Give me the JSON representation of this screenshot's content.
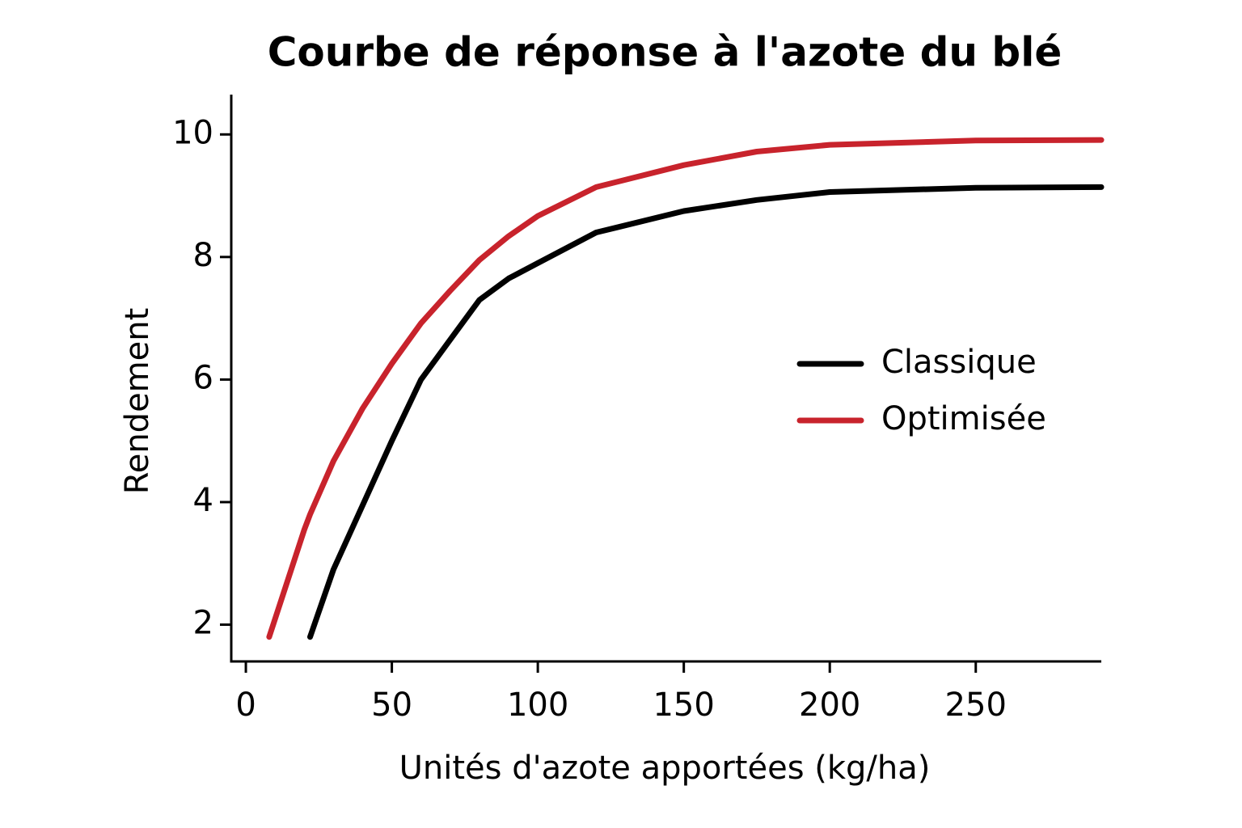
{
  "chart_data": {
    "type": "line",
    "title": "Courbe de réponse à l'azote du blé",
    "xlabel": "Unités d'azote apportées (kg/ha)",
    "ylabel": "Rendement",
    "x": [
      8,
      20,
      22,
      30,
      40,
      50,
      60,
      70,
      80,
      90,
      100,
      120,
      150,
      175,
      200,
      250,
      293
    ],
    "series": [
      {
        "name": "Classique",
        "color": "#000000",
        "values": [
          null,
          null,
          1.8,
          2.9,
          3.95,
          5.0,
          6.0,
          6.65,
          7.3,
          7.65,
          7.9,
          8.4,
          8.75,
          8.93,
          9.06,
          9.13,
          9.14
        ]
      },
      {
        "name": "Optimisée",
        "color": "#c8232c",
        "values": [
          1.8,
          3.55,
          3.8,
          4.67,
          5.53,
          6.26,
          6.92,
          7.45,
          7.95,
          8.34,
          8.67,
          9.14,
          9.5,
          9.72,
          9.83,
          9.9,
          9.91
        ]
      }
    ],
    "xlim": [
      -5,
      293
    ],
    "xticks": [
      0,
      50,
      100,
      150,
      200,
      250
    ],
    "ylim": [
      1.4,
      10.65
    ],
    "yticks": [
      2,
      4,
      6,
      8,
      10
    ],
    "grid": false,
    "legend": "right"
  }
}
